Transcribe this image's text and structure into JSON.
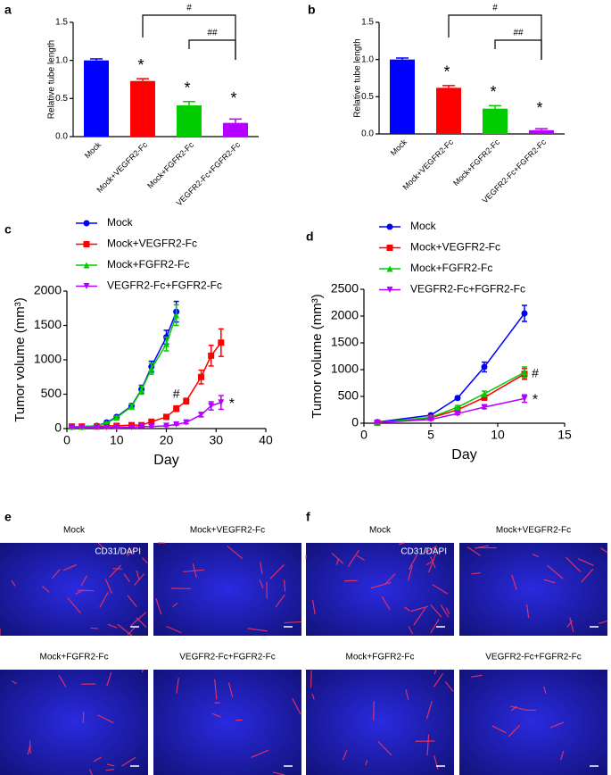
{
  "chart_data": [
    {
      "type": "bar",
      "panel_label": "a",
      "ylabel": "Relative tube length",
      "categories": [
        "Mock",
        "Mock+VEGFR2-Fc",
        "Mock+FGFR2-Fc",
        "VEGFR2-Fc+FGFR2-Fc"
      ],
      "values": [
        1.0,
        0.73,
        0.41,
        0.18
      ],
      "errors": [
        0.02,
        0.03,
        0.05,
        0.05
      ],
      "colors": [
        "#0000ff",
        "#ff0000",
        "#00cc00",
        "#b300ff"
      ],
      "ylim": [
        0,
        1.5
      ],
      "yticks": [
        {
          "value": 0,
          "label": "0.0"
        },
        {
          "value": 0.5,
          "label": "0.5"
        },
        {
          "value": 1,
          "label": "1.0"
        },
        {
          "value": 1.5,
          "label": "1.5"
        }
      ],
      "annotations": [
        "*",
        "*",
        "*",
        "#",
        "##"
      ]
    },
    {
      "type": "bar",
      "panel_label": "b",
      "ylabel": "Relative tube length",
      "categories": [
        "Mock",
        "Mock+VEGFR2-Fc",
        "Mock+FGFR2-Fc",
        "VEGFR2-Fc+FGFR2-Fc"
      ],
      "values": [
        1.0,
        0.62,
        0.34,
        0.05
      ],
      "errors": [
        0.02,
        0.03,
        0.04,
        0.02
      ],
      "colors": [
        "#0000ff",
        "#ff0000",
        "#00cc00",
        "#b300ff"
      ],
      "ylim": [
        0,
        1.5
      ],
      "yticks": [
        {
          "value": 0,
          "label": "0.0"
        },
        {
          "value": 0.5,
          "label": "0.5"
        },
        {
          "value": 1,
          "label": "1.0"
        },
        {
          "value": 1.5,
          "label": "1.5"
        }
      ],
      "annotations": [
        "*",
        "*",
        "*",
        "#",
        "##"
      ]
    },
    {
      "type": "line",
      "panel_label": "c",
      "ylabel": "Tumor volume (mm³)",
      "xlabel": "Day",
      "xlim": [
        0,
        40
      ],
      "xticks": [
        0,
        10,
        20,
        30,
        40
      ],
      "ylim": [
        0,
        2000
      ],
      "yticks": [
        0,
        500,
        1000,
        1500,
        2000
      ],
      "series": [
        {
          "name": "Mock",
          "color": "#0000ff",
          "marker": "circle",
          "x": [
            1,
            3,
            6,
            8,
            10,
            13,
            15,
            17,
            20,
            22
          ],
          "values": [
            30,
            30,
            40,
            90,
            170,
            330,
            570,
            900,
            1330,
            1700
          ],
          "errors": [
            5,
            5,
            10,
            15,
            20,
            30,
            60,
            80,
            100,
            150
          ]
        },
        {
          "name": "Mock+VEGFR2-Fc",
          "color": "#ff0000",
          "marker": "square",
          "x": [
            1,
            3,
            6,
            8,
            10,
            13,
            15,
            17,
            20,
            22,
            24,
            27,
            29,
            31
          ],
          "values": [
            30,
            30,
            30,
            40,
            40,
            50,
            50,
            100,
            170,
            290,
            400,
            750,
            1060,
            1250
          ],
          "errors": [
            5,
            5,
            5,
            5,
            10,
            10,
            10,
            20,
            30,
            40,
            40,
            100,
            150,
            200
          ]
        },
        {
          "name": "Mock+FGFR2-Fc",
          "color": "#00cc00",
          "marker": "triangle-up",
          "x": [
            1,
            3,
            6,
            8,
            10,
            13,
            15,
            17,
            20,
            22
          ],
          "values": [
            30,
            30,
            40,
            80,
            160,
            320,
            560,
            870,
            1230,
            1650
          ],
          "errors": [
            5,
            5,
            10,
            15,
            20,
            30,
            60,
            80,
            100,
            150
          ]
        },
        {
          "name": "VEGFR2-Fc+FGFR2-Fc",
          "color": "#b300ff",
          "marker": "triangle-down",
          "x": [
            1,
            3,
            6,
            8,
            10,
            13,
            15,
            17,
            20,
            22,
            24,
            27,
            29,
            31
          ],
          "values": [
            20,
            20,
            20,
            20,
            20,
            20,
            30,
            30,
            40,
            60,
            90,
            200,
            330,
            380
          ],
          "errors": [
            5,
            5,
            5,
            5,
            5,
            5,
            5,
            5,
            10,
            10,
            20,
            30,
            60,
            100
          ]
        }
      ],
      "annotations": [
        "#",
        "*"
      ]
    },
    {
      "type": "line",
      "panel_label": "d",
      "ylabel": "Tumor volume (mm³)",
      "xlabel": "Day",
      "xlim": [
        0,
        15
      ],
      "xticks": [
        0,
        5,
        10,
        15
      ],
      "ylim": [
        0,
        2500
      ],
      "yticks": [
        0,
        500,
        1000,
        1500,
        2000,
        2500
      ],
      "series": [
        {
          "name": "Mock",
          "color": "#0000ff",
          "marker": "circle",
          "x": [
            1,
            5,
            7,
            9,
            12
          ],
          "values": [
            20,
            150,
            470,
            1050,
            2050
          ],
          "errors": [
            5,
            20,
            30,
            90,
            150
          ]
        },
        {
          "name": "Mock+VEGFR2-Fc",
          "color": "#ff0000",
          "marker": "square",
          "x": [
            1,
            5,
            7,
            9,
            12
          ],
          "values": [
            10,
            100,
            250,
            480,
            920
          ],
          "errors": [
            5,
            15,
            30,
            50,
            100
          ]
        },
        {
          "name": "Mock+FGFR2-Fc",
          "color": "#00cc00",
          "marker": "triangle-up",
          "x": [
            1,
            5,
            7,
            9,
            12
          ],
          "values": [
            10,
            110,
            300,
            550,
            950
          ],
          "errors": [
            5,
            15,
            30,
            50,
            100
          ]
        },
        {
          "name": "VEGFR2-Fc+FGFR2-Fc",
          "color": "#b300ff",
          "marker": "triangle-down",
          "x": [
            1,
            5,
            7,
            9,
            12
          ],
          "values": [
            10,
            70,
            180,
            300,
            460
          ],
          "errors": [
            5,
            10,
            20,
            30,
            70
          ]
        }
      ],
      "annotations": [
        "#",
        "*"
      ]
    }
  ],
  "image_panels": [
    {
      "panel_label": "e",
      "stain": "CD31/DAPI",
      "titles": [
        "Mock",
        "Mock+VEGFR2-Fc",
        "Mock+FGFR2-Fc",
        "VEGFR2-Fc+FGFR2-Fc"
      ]
    },
    {
      "panel_label": "f",
      "stain": "CD31/DAPI",
      "titles": [
        "Mock",
        "Mock+VEGFR2-Fc",
        "Mock+FGFR2-Fc",
        "VEGFR2-Fc+FGFR2-Fc"
      ]
    }
  ]
}
